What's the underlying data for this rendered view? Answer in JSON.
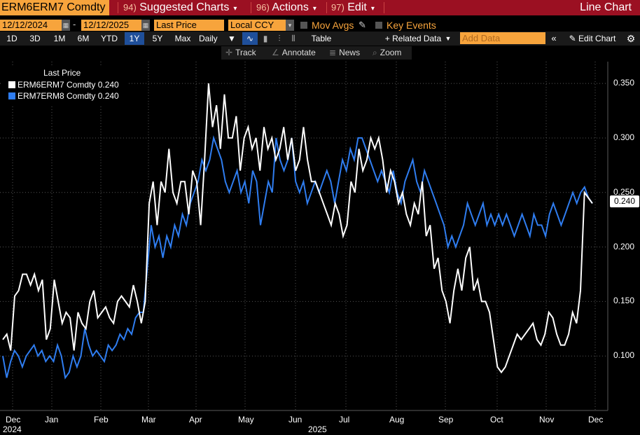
{
  "toolbar": {
    "ticker": "ERM6ERM7 Comdty",
    "menus": [
      {
        "num": "94)",
        "label": "Suggested Charts"
      },
      {
        "num": "96)",
        "label": "Actions"
      },
      {
        "num": "97)",
        "label": "Edit"
      }
    ],
    "chart_type": "Line Chart"
  },
  "controls": {
    "start_date": "12/12/2024",
    "date_sep": "-",
    "end_date": "12/12/2025",
    "field": "Last Price",
    "currency": "Local CCY",
    "mov_avgs": "Mov Avgs",
    "key_events": "Key Events"
  },
  "periods": [
    "1D",
    "3D",
    "1M",
    "6M",
    "YTD",
    "1Y",
    "5Y",
    "Max"
  ],
  "selected_period": "1Y",
  "frequency": "Daily",
  "table_label": "Table",
  "related_data": "+ Related Data",
  "add_data_placeholder": "Add Data",
  "edit_chart": "Edit Chart",
  "tools": {
    "track": "Track",
    "annotate": "Annotate",
    "news": "News",
    "zoom": "Zoom"
  },
  "colors": {
    "series1": "#ffffff",
    "series2": "#2f7df0",
    "accent": "#f7a43c",
    "topbar": "#9b1022"
  },
  "chart_data": {
    "type": "line",
    "legend_title": "Last Price",
    "last_value_label": "0.240",
    "ylim": [
      0.05,
      0.37
    ],
    "yticks": [
      "0.100",
      "0.150",
      "0.200",
      "0.250",
      "0.300",
      "0.350"
    ],
    "xticks": [
      "Dec",
      "Jan",
      "Feb",
      "Mar",
      "Apr",
      "May",
      "Jun",
      "Jul",
      "Aug",
      "Sep",
      "Oct",
      "Nov",
      "Dec"
    ],
    "year_labels": [
      "2024",
      "2025"
    ],
    "series": [
      {
        "name": "ERM6ERM7 Comdty",
        "last": "0.240",
        "color": "#ffffff",
        "values": [
          0.115,
          0.12,
          0.105,
          0.155,
          0.16,
          0.175,
          0.175,
          0.165,
          0.175,
          0.16,
          0.17,
          0.115,
          0.125,
          0.17,
          0.15,
          0.13,
          0.14,
          0.135,
          0.105,
          0.14,
          0.13,
          0.125,
          0.15,
          0.16,
          0.135,
          0.14,
          0.145,
          0.135,
          0.13,
          0.15,
          0.155,
          0.15,
          0.145,
          0.165,
          0.15,
          0.13,
          0.15,
          0.24,
          0.26,
          0.22,
          0.26,
          0.25,
          0.29,
          0.25,
          0.24,
          0.26,
          0.26,
          0.23,
          0.27,
          0.26,
          0.22,
          0.28,
          0.35,
          0.31,
          0.33,
          0.29,
          0.34,
          0.3,
          0.3,
          0.32,
          0.27,
          0.3,
          0.31,
          0.29,
          0.3,
          0.27,
          0.31,
          0.29,
          0.3,
          0.28,
          0.29,
          0.31,
          0.28,
          0.3,
          0.27,
          0.28,
          0.31,
          0.28,
          0.26,
          0.26,
          0.25,
          0.24,
          0.23,
          0.22,
          0.24,
          0.23,
          0.21,
          0.22,
          0.26,
          0.25,
          0.29,
          0.27,
          0.28,
          0.3,
          0.29,
          0.3,
          0.28,
          0.25,
          0.27,
          0.26,
          0.24,
          0.25,
          0.23,
          0.22,
          0.24,
          0.23,
          0.26,
          0.21,
          0.22,
          0.18,
          0.19,
          0.16,
          0.15,
          0.13,
          0.16,
          0.18,
          0.16,
          0.19,
          0.2,
          0.16,
          0.17,
          0.15,
          0.15,
          0.14,
          0.115,
          0.09,
          0.085,
          0.09,
          0.1,
          0.11,
          0.12,
          0.115,
          0.12,
          0.125,
          0.13,
          0.115,
          0.11,
          0.12,
          0.14,
          0.135,
          0.12,
          0.11,
          0.11,
          0.12,
          0.14,
          0.13,
          0.16,
          0.25,
          0.245,
          0.24
        ]
      },
      {
        "name": "ERM7ERM8 Comdty",
        "last": "0.240",
        "color": "#2f7df0",
        "values": [
          0.1,
          0.08,
          0.095,
          0.105,
          0.1,
          0.09,
          0.1,
          0.105,
          0.11,
          0.1,
          0.105,
          0.095,
          0.1,
          0.095,
          0.11,
          0.1,
          0.08,
          0.085,
          0.1,
          0.09,
          0.1,
          0.125,
          0.11,
          0.1,
          0.105,
          0.1,
          0.095,
          0.11,
          0.105,
          0.11,
          0.12,
          0.115,
          0.125,
          0.12,
          0.135,
          0.14,
          0.14,
          0.18,
          0.22,
          0.2,
          0.21,
          0.19,
          0.21,
          0.2,
          0.22,
          0.21,
          0.23,
          0.22,
          0.24,
          0.25,
          0.26,
          0.28,
          0.27,
          0.28,
          0.3,
          0.29,
          0.28,
          0.26,
          0.25,
          0.26,
          0.27,
          0.25,
          0.26,
          0.24,
          0.27,
          0.26,
          0.22,
          0.24,
          0.26,
          0.25,
          0.3,
          0.28,
          0.27,
          0.28,
          0.3,
          0.26,
          0.25,
          0.26,
          0.24,
          0.25,
          0.26,
          0.25,
          0.26,
          0.27,
          0.26,
          0.24,
          0.26,
          0.28,
          0.27,
          0.29,
          0.28,
          0.3,
          0.3,
          0.29,
          0.28,
          0.27,
          0.26,
          0.27,
          0.26,
          0.25,
          0.27,
          0.25,
          0.24,
          0.26,
          0.27,
          0.28,
          0.26,
          0.25,
          0.27,
          0.26,
          0.25,
          0.24,
          0.23,
          0.22,
          0.2,
          0.21,
          0.2,
          0.21,
          0.22,
          0.24,
          0.23,
          0.22,
          0.23,
          0.24,
          0.22,
          0.23,
          0.22,
          0.23,
          0.22,
          0.23,
          0.22,
          0.21,
          0.22,
          0.23,
          0.22,
          0.21,
          0.23,
          0.22,
          0.22,
          0.21,
          0.23,
          0.24,
          0.23,
          0.22,
          0.23,
          0.24,
          0.25,
          0.24,
          0.25,
          0.255,
          0.245,
          0.24
        ]
      }
    ]
  }
}
